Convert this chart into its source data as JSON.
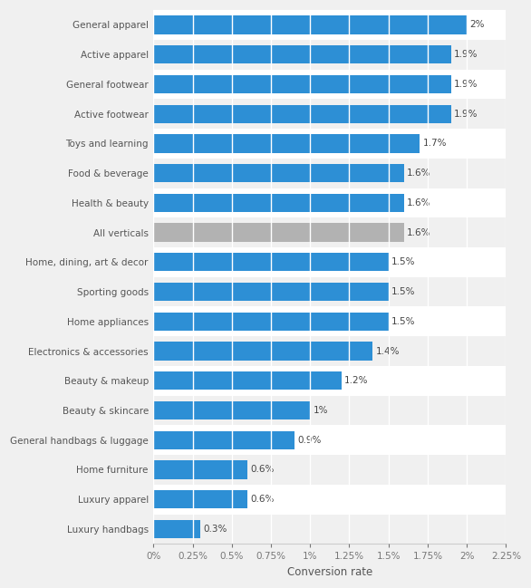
{
  "categories": [
    "Luxury handbags",
    "Luxury apparel",
    "Home furniture",
    "General handbags & luggage",
    "Beauty & skincare",
    "Beauty & makeup",
    "Electronics & accessories",
    "Home appliances",
    "Sporting goods",
    "Home, dining, art & decor",
    "All verticals",
    "Health & beauty",
    "Food & beverage",
    "Toys and learning",
    "Active footwear",
    "General footwear",
    "Active apparel",
    "General apparel"
  ],
  "values": [
    0.3,
    0.6,
    0.6,
    0.9,
    1.0,
    1.2,
    1.4,
    1.5,
    1.5,
    1.5,
    1.6,
    1.6,
    1.6,
    1.7,
    1.9,
    1.9,
    1.9,
    2.0
  ],
  "labels": [
    "0.3%",
    "0.6%",
    "0.6%",
    "0.9%",
    "1%",
    "1.2%",
    "1.4%",
    "1.5%",
    "1.5%",
    "1.5%",
    "1.6%",
    "1.6%",
    "1.6%",
    "1.7%",
    "1.9%",
    "1.9%",
    "1.9%",
    "2%"
  ],
  "bar_color_default": "#2d8fd5",
  "bar_color_special": "#b2b2b2",
  "special_index": 10,
  "plot_bg_color": "#ffffff",
  "fig_bg_color": "#f0f0f0",
  "xlabel": "Conversion rate",
  "xlim_max": 2.25,
  "xticks": [
    0,
    0.25,
    0.5,
    0.75,
    1.0,
    1.25,
    1.5,
    1.75,
    2.0,
    2.25
  ],
  "xtick_labels": [
    "0%",
    "0.25%",
    "0.5%",
    "0.75%",
    "1%",
    "1.25%",
    "1.5%",
    "1.75%",
    "2%",
    "2.25%"
  ],
  "bar_height": 0.62,
  "label_fontsize": 7.5,
  "tick_fontsize": 7.5,
  "xlabel_fontsize": 8.5,
  "ytick_fontsize": 7.5
}
